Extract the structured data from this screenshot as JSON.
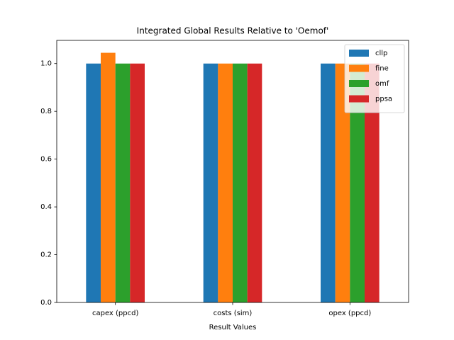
{
  "chart_data": {
    "type": "bar",
    "title": "Integrated Global Results Relative to 'Oemof'",
    "xlabel": "Result Values",
    "categories": [
      "capex (ppcd)",
      "costs (sim)",
      "opex (ppcd)"
    ],
    "series": [
      {
        "name": "cllp",
        "color": "#1f77b4",
        "values": [
          1.0,
          1.0,
          1.0
        ]
      },
      {
        "name": "fine",
        "color": "#ff7f0e",
        "values": [
          1.045,
          1.0,
          1.0
        ]
      },
      {
        "name": "omf",
        "color": "#2ca02c",
        "values": [
          1.0,
          1.0,
          1.0
        ]
      },
      {
        "name": "ppsa",
        "color": "#d62728",
        "values": [
          1.0,
          1.0,
          1.0
        ]
      }
    ],
    "ylim": [
      0,
      1.097
    ],
    "yticks": [
      {
        "value": 0,
        "label": "0.0"
      },
      0.2,
      0.4,
      0.6,
      0.8,
      {
        "value": 1,
        "label": "1.0"
      }
    ],
    "legend": "upper right"
  }
}
